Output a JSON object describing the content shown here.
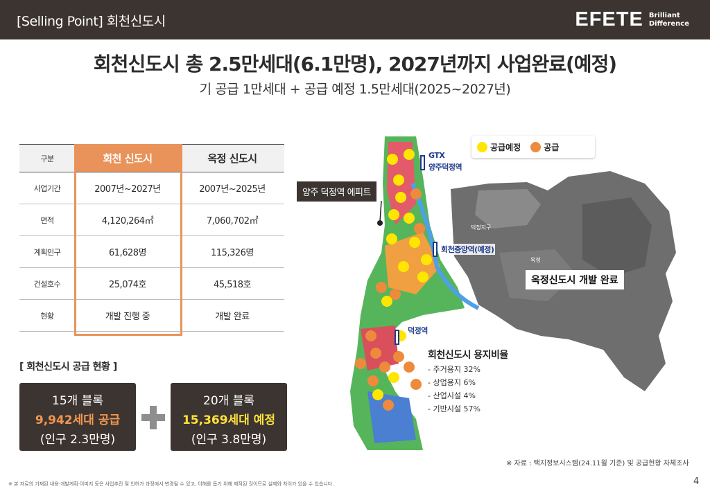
{
  "header": {
    "title": "[Selling Point] 회천신도시",
    "brand_name": "EFETE",
    "brand_sub_1": "Brilliant",
    "brand_sub_2": "Difference"
  },
  "main_title": "회천신도시 총 2.5만세대(6.1만명), 2027년까지 사업완료(예정)",
  "subtitle": "기 공급 1만세대 + 공급 예정 1.5만세대(2025~2027년)",
  "table": {
    "headers": [
      "구분",
      "회천 신도시",
      "옥정 신도시"
    ],
    "rows": [
      {
        "label": "사업기간",
        "hoecheon": "2007년~2027년",
        "okjeong": "2007년~2025년"
      },
      {
        "label": "면적",
        "hoecheon": "4,120,264㎡",
        "okjeong": "7,060,702㎡"
      },
      {
        "label": "계획인구",
        "hoecheon": "61,628명",
        "okjeong": "115,326명"
      },
      {
        "label": "건설호수",
        "hoecheon": "25,074호",
        "okjeong": "45,518호"
      },
      {
        "label": "현황",
        "hoecheon": "개발 진행 중",
        "okjeong": "개발 완료"
      }
    ]
  },
  "supply": {
    "title": "[ 회천신도시 공급 현황 ]",
    "box1": {
      "line1": "15개 블록",
      "line2": "9,942세대 공급",
      "line3": "(인구 2.3만명)"
    },
    "box2": {
      "line1": "20개 블록",
      "line2": "15,369세대 예정",
      "line3": "(인구 3.8만명)"
    }
  },
  "map": {
    "legend": {
      "planned": "공급예정",
      "supplied": "공급"
    },
    "colors": {
      "planned": "#ffe600",
      "supplied": "#ee8a3c"
    },
    "site_label": "양주 덕정역 에피트",
    "okjeong_label": "옥정신도시 개발 완료",
    "stations": {
      "gtx_1": "GTX",
      "gtx_2": "양주덕정역",
      "central": "회천중앙역(예정)",
      "deokjeong": "덕정역"
    },
    "district_label": "덕정지구",
    "okjeong_small": "옥정"
  },
  "ratio": {
    "title": "회천신도시 용지비율",
    "items": [
      "- 주거용지 32%",
      "- 상업용지 6%",
      "- 산업시설 4%",
      "- 기반시설 57%"
    ]
  },
  "source": "※ 자료 : 택지정보시스템(24.11월 기준) 및 공급현황 자체조사",
  "footnote": "※ 본 자료의 기재된 내용·개발계획·이미지 등은 사업추진 및 인허가 과정에서 변경될 수 있고, 이해를 돕기 위해 제작된 것이므로 실제와 차이가 있을 수 있습니다.",
  "page_number": "4"
}
